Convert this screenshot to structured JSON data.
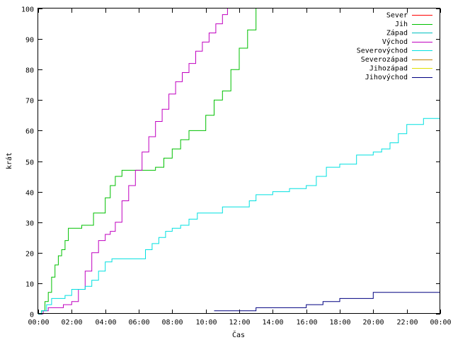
{
  "chart_data": {
    "type": "line",
    "xlabel": "Čas",
    "ylabel": "krát",
    "ylim": [
      0,
      100
    ],
    "xlim": [
      "00:00",
      "24:00"
    ],
    "yticks": [
      0,
      10,
      20,
      30,
      40,
      50,
      60,
      70,
      80,
      90,
      100
    ],
    "xticks": [
      {
        "value": 0,
        "label": "00:00"
      },
      {
        "value": 2,
        "label": "02:00"
      },
      {
        "value": 4,
        "label": "04:00"
      },
      {
        "value": 6,
        "label": "06:00"
      },
      {
        "value": 8,
        "label": "08:00"
      },
      {
        "value": 10,
        "label": "10:00"
      },
      {
        "value": 12,
        "label": "12:00"
      },
      {
        "value": 14,
        "label": "14:00"
      },
      {
        "value": 16,
        "label": "16:00"
      },
      {
        "value": 18,
        "label": "18:00"
      },
      {
        "value": 20,
        "label": "20:00"
      },
      {
        "value": 22,
        "label": "22:00"
      },
      {
        "value": 24,
        "label": "00:00"
      }
    ],
    "grid": false,
    "legend_position": "top-right",
    "series": [
      {
        "name": "Sever",
        "color": "#ff0000",
        "x": [],
        "y": []
      },
      {
        "name": "Jih",
        "color": "#00c000",
        "x": [
          0,
          0.2,
          0.4,
          0.6,
          0.8,
          1.0,
          1.2,
          1.4,
          1.6,
          1.8,
          2.2,
          2.6,
          3.3,
          3.6,
          4.0,
          4.3,
          4.6,
          5.0,
          5.3,
          5.6,
          6.0,
          6.5,
          7.0,
          7.5,
          8.0,
          8.5,
          9.0,
          9.6,
          10.0,
          10.5,
          11.0,
          11.5,
          12.0,
          12.5,
          13.0
        ],
        "y": [
          0,
          1,
          4,
          7,
          12,
          16,
          19,
          21,
          24,
          28,
          28,
          29,
          33,
          33,
          38,
          42,
          45,
          47,
          47,
          47,
          47,
          47,
          48,
          51,
          54,
          57,
          60,
          60,
          65,
          70,
          73,
          80,
          87,
          93,
          100
        ]
      },
      {
        "name": "Západ",
        "color": "#00c0c0",
        "x": [],
        "y": []
      },
      {
        "name": "Východ",
        "color": "#c000c0",
        "x": [
          0,
          0.3,
          0.6,
          1.0,
          1.5,
          2.0,
          2.4,
          2.8,
          3.2,
          3.6,
          4.0,
          4.3,
          4.6,
          5.0,
          5.4,
          5.8,
          6.2,
          6.6,
          7.0,
          7.4,
          7.8,
          8.2,
          8.6,
          9.0,
          9.4,
          9.8,
          10.2,
          10.6,
          11.0,
          11.3
        ],
        "y": [
          0,
          1,
          2,
          2,
          3,
          4,
          8,
          14,
          20,
          24,
          26,
          27,
          30,
          37,
          42,
          47,
          53,
          58,
          63,
          67,
          72,
          76,
          79,
          82,
          86,
          89,
          92,
          95,
          98,
          100
        ]
      },
      {
        "name": "Severovýchod",
        "color": "#00e0e0",
        "x": [
          0,
          0.2,
          0.5,
          0.8,
          1.2,
          1.6,
          2.0,
          2.4,
          2.8,
          3.2,
          3.6,
          4.0,
          4.4,
          5.0,
          6.0,
          6.4,
          6.8,
          7.2,
          7.6,
          8.0,
          8.5,
          9.0,
          9.5,
          10.0,
          11.0,
          12.0,
          12.6,
          13.0,
          14.0,
          15.0,
          16.0,
          16.6,
          17.2,
          18.0,
          19.0,
          20.0,
          20.5,
          21.0,
          21.5,
          22.0,
          23.0,
          24.0
        ],
        "y": [
          0,
          1,
          3,
          5,
          5,
          6,
          8,
          8,
          9,
          11,
          14,
          17,
          18,
          18,
          18,
          21,
          23,
          25,
          27,
          28,
          29,
          31,
          33,
          33,
          35,
          35,
          37,
          39,
          40,
          41,
          42,
          45,
          48,
          49,
          52,
          53,
          54,
          56,
          59,
          62,
          64,
          64
        ]
      },
      {
        "name": "Severozápad",
        "color": "#c08000",
        "x": [],
        "y": []
      },
      {
        "name": "Jihozápad",
        "color": "#e0e000",
        "x": [],
        "y": []
      },
      {
        "name": "Jihovýchod",
        "color": "#000080",
        "x": [
          10.5,
          12.0,
          13.0,
          15.0,
          16.0,
          17.0,
          18.0,
          19.7,
          20.0,
          22.0,
          24.0
        ],
        "y": [
          1,
          1,
          2,
          2,
          3,
          4,
          5,
          5,
          7,
          7,
          7
        ]
      }
    ]
  }
}
